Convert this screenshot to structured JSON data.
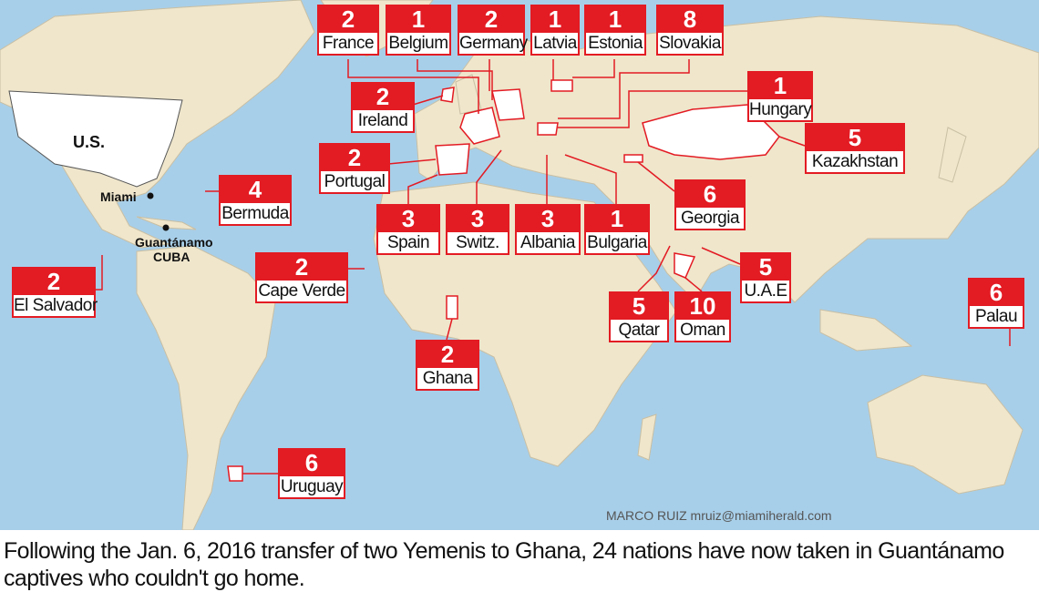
{
  "colors": {
    "ocean": "#a8cfe9",
    "land": "#efe6cc",
    "highlight": "#ffffff",
    "accent": "#e31b23"
  },
  "map_labels": {
    "us": "U.S.",
    "miami": "Miami",
    "guantanamo": "Guantánamo",
    "cuba": "CUBA"
  },
  "countries": [
    {
      "name": "France",
      "count": "2"
    },
    {
      "name": "Belgium",
      "count": "1"
    },
    {
      "name": "Germany",
      "count": "2"
    },
    {
      "name": "Latvia",
      "count": "1"
    },
    {
      "name": "Estonia",
      "count": "1"
    },
    {
      "name": "Slovakia",
      "count": "8"
    },
    {
      "name": "Hungary",
      "count": "1"
    },
    {
      "name": "Ireland",
      "count": "2"
    },
    {
      "name": "Portugal",
      "count": "2"
    },
    {
      "name": "Kazakhstan",
      "count": "5"
    },
    {
      "name": "Bermuda",
      "count": "4"
    },
    {
      "name": "Georgia",
      "count": "6"
    },
    {
      "name": "Spain",
      "count": "3"
    },
    {
      "name": "Switz.",
      "count": "3"
    },
    {
      "name": "Albania",
      "count": "3"
    },
    {
      "name": "Bulgaria",
      "count": "1"
    },
    {
      "name": "El Salvador",
      "count": "2"
    },
    {
      "name": "Cape Verde",
      "count": "2"
    },
    {
      "name": "U.A.E",
      "count": "5"
    },
    {
      "name": "Qatar",
      "count": "5"
    },
    {
      "name": "Oman",
      "count": "10"
    },
    {
      "name": "Palau",
      "count": "6"
    },
    {
      "name": "Ghana",
      "count": "2"
    },
    {
      "name": "Uruguay",
      "count": "6"
    }
  ],
  "credit": "MARCO RUIZ mruiz@miamiherald.com",
  "caption": "Following the Jan. 6, 2016 transfer of two Yemenis to Ghana, 24 nations have now taken in Guantánamo captives who couldn't go home."
}
